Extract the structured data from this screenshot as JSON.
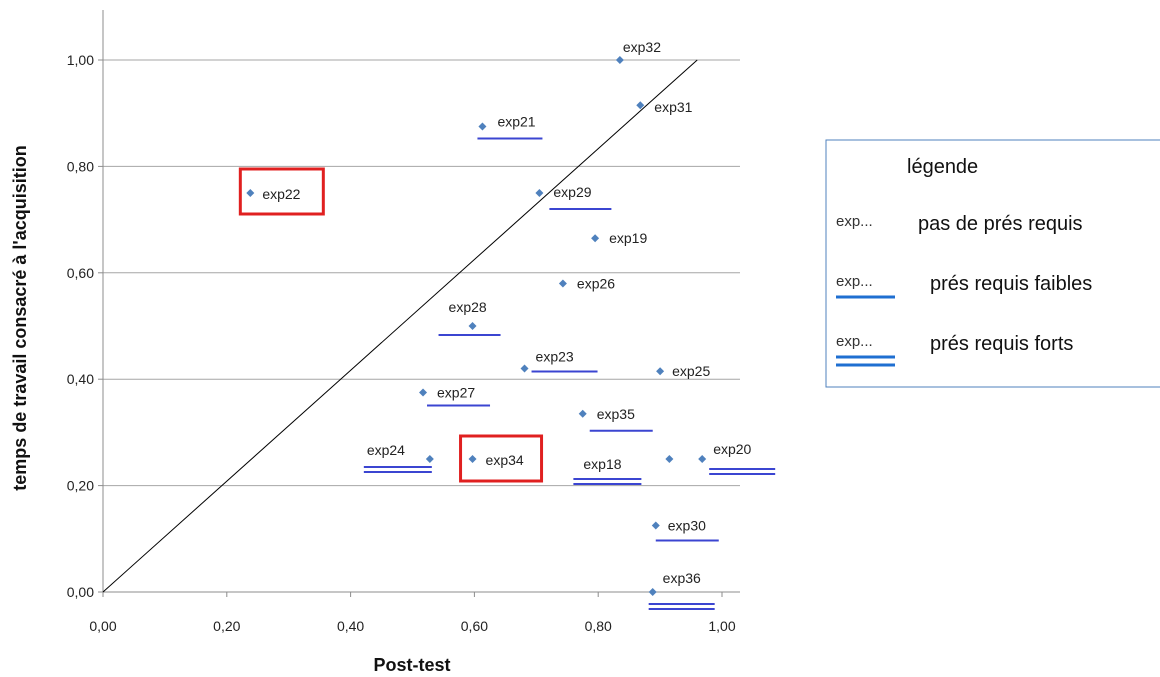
{
  "chart_data": {
    "type": "scatter",
    "xlabel": "Post-test",
    "ylabel": "temps de travail  consacré à l'acquisition",
    "xlim": [
      0,
      1
    ],
    "ylim": [
      0,
      1
    ],
    "x_ticks": [
      "0,00",
      "0,20",
      "0,40",
      "0,60",
      "0,80",
      "1,00"
    ],
    "y_ticks": [
      "0,00",
      "0,20",
      "0,40",
      "0,60",
      "0,80",
      "1,00"
    ],
    "grid": "horizontal",
    "diagonal": {
      "from": [
        0,
        0
      ],
      "to": [
        0.96,
        1.0
      ]
    },
    "marker_color": "#4f81bd",
    "underline_color": "#3b45d1",
    "highlight_color": "#e02020",
    "points": [
      {
        "label": "exp32",
        "x": 0.835,
        "y": 1.0,
        "prereq": "none"
      },
      {
        "label": "exp31",
        "x": 0.868,
        "y": 0.915,
        "prereq": "none"
      },
      {
        "label": "exp21",
        "x": 0.613,
        "y": 0.875,
        "prereq": "weak"
      },
      {
        "label": "exp22",
        "x": 0.238,
        "y": 0.75,
        "prereq": "none",
        "highlighted": true
      },
      {
        "label": "exp29",
        "x": 0.705,
        "y": 0.75,
        "prereq": "weak"
      },
      {
        "label": "exp19",
        "x": 0.795,
        "y": 0.665,
        "prereq": "none"
      },
      {
        "label": "exp26",
        "x": 0.743,
        "y": 0.58,
        "prereq": "none"
      },
      {
        "label": "exp28",
        "x": 0.597,
        "y": 0.5,
        "prereq": "weak"
      },
      {
        "label": "exp23",
        "x": 0.681,
        "y": 0.42,
        "prereq": "weak"
      },
      {
        "label": "exp25",
        "x": 0.9,
        "y": 0.415,
        "prereq": "none"
      },
      {
        "label": "exp27",
        "x": 0.517,
        "y": 0.375,
        "prereq": "weak"
      },
      {
        "label": "exp35",
        "x": 0.775,
        "y": 0.335,
        "prereq": "weak"
      },
      {
        "label": "exp24",
        "x": 0.528,
        "y": 0.25,
        "prereq": "strong"
      },
      {
        "label": "exp34",
        "x": 0.597,
        "y": 0.25,
        "prereq": "none",
        "highlighted": true
      },
      {
        "label": "exp18",
        "x": 0.915,
        "y": 0.25,
        "prereq": "strong"
      },
      {
        "label": "exp20",
        "x": 0.968,
        "y": 0.25,
        "prereq": "strong"
      },
      {
        "label": "exp30",
        "x": 0.893,
        "y": 0.125,
        "prereq": "weak"
      },
      {
        "label": "exp36",
        "x": 0.888,
        "y": 0.0,
        "prereq": "strong"
      }
    ],
    "legend": {
      "title": "légende",
      "placement": "right",
      "entries": [
        {
          "sample": "exp...",
          "label": "pas de prés requis",
          "prereq": "none"
        },
        {
          "sample": "exp...",
          "label": "prés requis faibles",
          "prereq": "weak"
        },
        {
          "sample": "exp...",
          "label": "prés requis forts",
          "prereq": "strong"
        }
      ]
    }
  }
}
